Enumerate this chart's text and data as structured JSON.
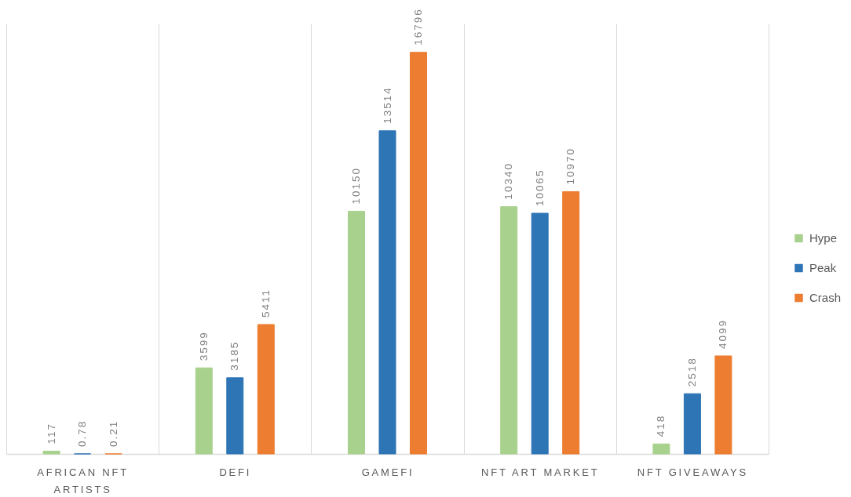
{
  "chart_data": {
    "type": "bar",
    "categories": [
      "AFRICAN NFT ARTISTS",
      "DEFI",
      "GAMEFI",
      "NFT ART MARKET",
      "NFT GIVEAWAYS"
    ],
    "series": [
      {
        "name": "Hype",
        "color": "#a9d18e",
        "values": [
          117,
          3599,
          10150,
          10340,
          418
        ]
      },
      {
        "name": "Peak",
        "color": "#2e75b6",
        "values": [
          0.78,
          3185,
          13514,
          10065,
          2518
        ]
      },
      {
        "name": "Crash",
        "color": "#ed7d31",
        "values": [
          0.21,
          5411,
          16796,
          10970,
          4099
        ]
      }
    ],
    "data_labels": true,
    "grid": "x",
    "legend": "right",
    "tick_labels": "x"
  }
}
